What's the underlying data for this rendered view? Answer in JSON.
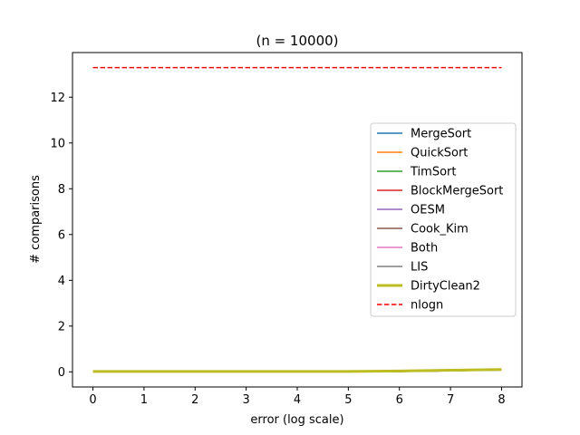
{
  "chart_data": {
    "type": "line",
    "title": "(n = 10000)",
    "xlabel": "error (log scale)",
    "ylabel": "# comparisons",
    "xlim": [
      -0.4,
      8.4
    ],
    "ylim": [
      -0.66,
      13.95
    ],
    "xticks": [
      0,
      1,
      2,
      3,
      4,
      5,
      6,
      7,
      8
    ],
    "yticks": [
      0,
      2,
      4,
      6,
      8,
      10,
      12
    ],
    "legend_position": "center-right",
    "x": [
      0,
      1,
      2,
      3,
      4,
      5,
      6,
      7,
      8
    ],
    "series": [
      {
        "name": "MergeSort",
        "color": "#1f77b4",
        "style": "solid",
        "width": 1.5,
        "values": [
          0.01,
          0.01,
          0.01,
          0.01,
          0.01,
          0.01,
          0.02,
          0.05,
          0.08
        ]
      },
      {
        "name": "QuickSort",
        "color": "#ff7f0e",
        "style": "solid",
        "width": 1.5,
        "values": [
          0.02,
          0.02,
          0.02,
          0.02,
          0.02,
          0.02,
          0.03,
          0.06,
          0.09
        ]
      },
      {
        "name": "TimSort",
        "color": "#2ca02c",
        "style": "solid",
        "width": 1.5,
        "values": [
          0.01,
          0.01,
          0.01,
          0.01,
          0.01,
          0.01,
          0.02,
          0.05,
          0.08
        ]
      },
      {
        "name": "BlockMergeSort",
        "color": "#d62728",
        "style": "solid",
        "width": 1.5,
        "values": [
          0.02,
          0.02,
          0.02,
          0.02,
          0.02,
          0.02,
          0.03,
          0.06,
          0.09
        ]
      },
      {
        "name": "OESM",
        "color": "#9467bd",
        "style": "solid",
        "width": 1.5,
        "values": [
          0.01,
          0.01,
          0.01,
          0.01,
          0.01,
          0.01,
          0.02,
          0.05,
          0.08
        ]
      },
      {
        "name": "Cook_Kim",
        "color": "#8c564b",
        "style": "solid",
        "width": 1.5,
        "values": [
          0.01,
          0.01,
          0.01,
          0.01,
          0.01,
          0.01,
          0.02,
          0.05,
          0.08
        ]
      },
      {
        "name": "Both",
        "color": "#e377c2",
        "style": "solid",
        "width": 1.5,
        "values": [
          0.01,
          0.01,
          0.01,
          0.01,
          0.01,
          0.01,
          0.02,
          0.05,
          0.08
        ]
      },
      {
        "name": "LIS",
        "color": "#7f7f7f",
        "style": "solid",
        "width": 1.5,
        "values": [
          0.01,
          0.01,
          0.01,
          0.01,
          0.01,
          0.01,
          0.02,
          0.05,
          0.08
        ]
      },
      {
        "name": "DirtyClean2",
        "color": "#bcbd22",
        "style": "solid",
        "width": 3,
        "values": [
          0.02,
          0.02,
          0.02,
          0.02,
          0.02,
          0.02,
          0.04,
          0.07,
          0.1
        ]
      },
      {
        "name": "nlogn",
        "color": "#ff0000",
        "style": "dashed",
        "width": 1.5,
        "values": [
          13.29,
          13.29,
          13.29,
          13.29,
          13.29,
          13.29,
          13.29,
          13.29,
          13.29
        ]
      }
    ]
  }
}
